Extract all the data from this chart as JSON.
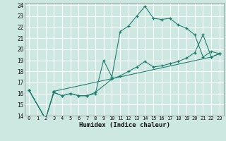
{
  "xlabel": "Humidex (Indice chaleur)",
  "bg_color": "#cce8e0",
  "grid_color": "#ffffff",
  "line_color": "#1a7a6e",
  "xlim": [
    -0.5,
    23.5
  ],
  "ylim": [
    14,
    24.2
  ],
  "xticks": [
    0,
    1,
    2,
    3,
    4,
    5,
    6,
    7,
    8,
    9,
    10,
    11,
    12,
    13,
    14,
    15,
    16,
    17,
    18,
    19,
    20,
    21,
    22,
    23
  ],
  "yticks": [
    14,
    15,
    16,
    17,
    18,
    19,
    20,
    21,
    22,
    23,
    24
  ],
  "line1_x": [
    0,
    2,
    3,
    4,
    5,
    6,
    7,
    8,
    9,
    10,
    11,
    12,
    13,
    14,
    15,
    16,
    17,
    18,
    19,
    20,
    21,
    22,
    23
  ],
  "line1_y": [
    16.3,
    13.7,
    16.1,
    15.8,
    16.0,
    15.8,
    15.8,
    16.0,
    19.0,
    17.5,
    21.6,
    22.1,
    23.0,
    23.9,
    22.8,
    22.7,
    22.8,
    22.2,
    21.9,
    21.3,
    19.3,
    19.8,
    19.6
  ],
  "line2_x": [
    0,
    2,
    3,
    4,
    5,
    6,
    7,
    8,
    10,
    11,
    12,
    13,
    14,
    15,
    16,
    17,
    18,
    19,
    20,
    21,
    22,
    23
  ],
  "line2_y": [
    16.3,
    13.7,
    16.1,
    15.8,
    16.0,
    15.8,
    15.8,
    16.1,
    17.3,
    17.6,
    18.0,
    18.4,
    18.9,
    18.4,
    18.5,
    18.7,
    18.9,
    19.2,
    19.7,
    21.3,
    19.3,
    19.6
  ],
  "line3_x": [
    0,
    2,
    3,
    22,
    23
  ],
  "line3_y": [
    16.3,
    13.7,
    16.2,
    19.3,
    19.6
  ]
}
